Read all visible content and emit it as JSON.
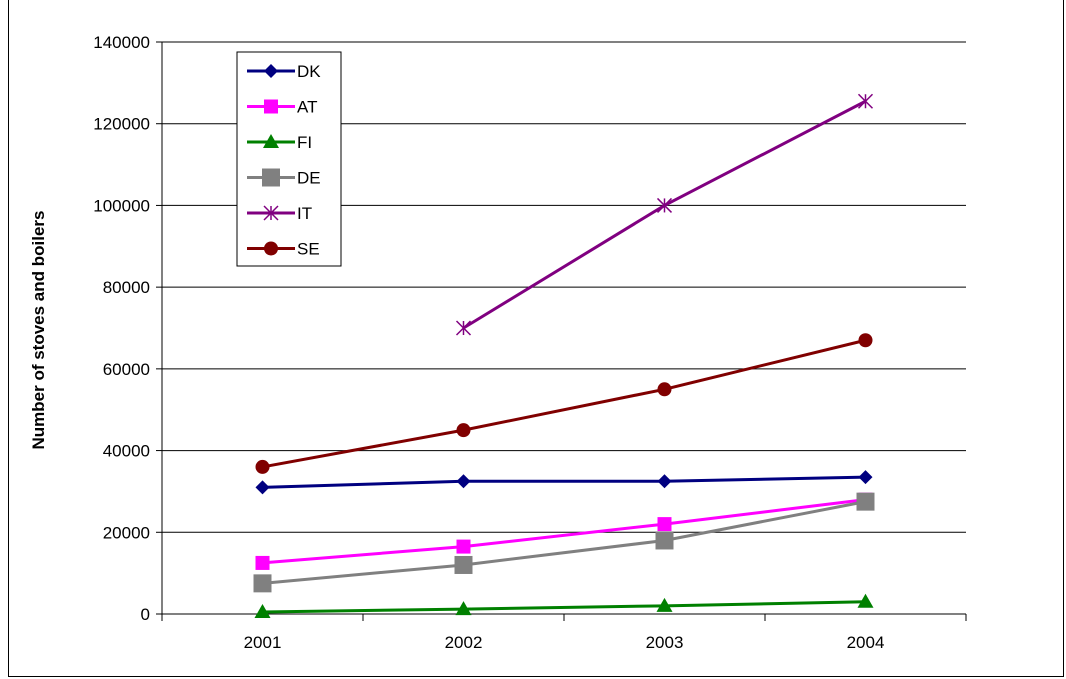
{
  "chart_data": {
    "type": "line",
    "title": "",
    "xlabel": "",
    "ylabel": "Number of stoves and boilers",
    "categories": [
      "2001",
      "2002",
      "2003",
      "2004"
    ],
    "ylim": [
      0,
      140000
    ],
    "yticks": [
      0,
      20000,
      40000,
      60000,
      80000,
      100000,
      120000,
      140000
    ],
    "ytick_labels": [
      "0",
      "20000",
      "40000",
      "60000",
      "80000",
      "100000",
      "120000",
      "140000"
    ],
    "grid": "horizontal",
    "legend_position": "top-left",
    "series": [
      {
        "name": "DK",
        "color": "#000080",
        "marker": "diamond",
        "values": [
          31000,
          32500,
          32500,
          33500
        ]
      },
      {
        "name": "AT",
        "color": "#FF00FF",
        "marker": "square",
        "values": [
          12500,
          16500,
          22000,
          28000
        ]
      },
      {
        "name": "FI",
        "color": "#008000",
        "marker": "triangle",
        "values": [
          500,
          1200,
          2000,
          3000
        ]
      },
      {
        "name": "DE",
        "color": "#808080",
        "marker": "square-large",
        "values": [
          7500,
          12000,
          18000,
          27500
        ]
      },
      {
        "name": "IT",
        "color": "#800080",
        "marker": "star",
        "values": [
          null,
          70000,
          100000,
          125500
        ]
      },
      {
        "name": "SE",
        "color": "#800000",
        "marker": "circle",
        "values": [
          36000,
          45000,
          55000,
          67000
        ]
      }
    ]
  }
}
